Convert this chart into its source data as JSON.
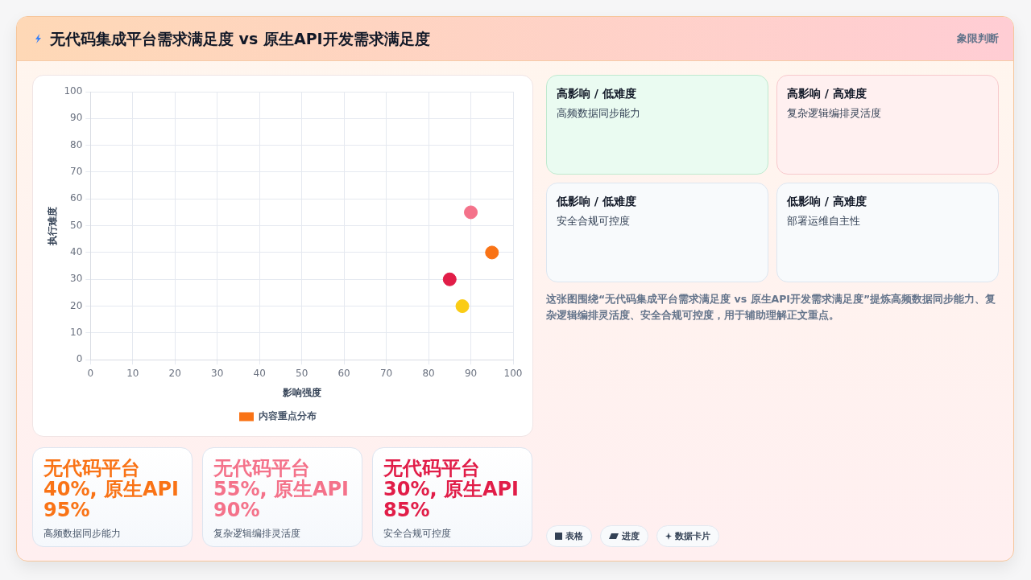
{
  "chart_data": [
    {
      "type": "scatter",
      "title": "无代码集成平台需求满足度 vs 原生API开发需求满足度",
      "xlabel": "影响强度",
      "ylabel": "执行难度",
      "x": [
        95,
        90,
        85,
        88
      ],
      "series": [
        {
          "name": "内容重点分布",
          "color": "#f97316",
          "colors": [
            "#f97316",
            "#f4728a",
            "#e11d48",
            "#facc15"
          ],
          "values": [
            40,
            55,
            30,
            20
          ]
        }
      ],
      "xlim": [
        0,
        100
      ],
      "xticks": [
        0,
        10,
        20,
        30,
        40,
        50,
        60,
        70,
        80,
        90,
        100
      ],
      "ylim": [
        0,
        100
      ],
      "yticks": [
        0,
        10,
        20,
        30,
        40,
        50,
        60,
        70,
        80,
        90,
        100
      ],
      "grid": true,
      "legend": "bottom",
      "marker": "circle"
    },
    {
      "type": "other",
      "title": "象限判断",
      "annotations": [
        "高影响 / 低难度",
        "高频数据同步能力",
        "高影响 / 高难度",
        "复杂逻辑编排灵活度",
        "低影响 / 低难度",
        "安全合规可控度",
        "低影响 / 高难度",
        "部署运维自主性",
        "这张图围绕“无代码集成平台需求满足度 vs 原生API开发需求满足度”提炼高频数据同步能力、复杂逻辑编排灵活度、安全合规可控度，用于辅助理解正文重点。"
      ]
    },
    {
      "type": "other",
      "annotations": [
        "无代码平台 40%, 原生API 95%",
        "高频数据同步能力",
        "无代码平台 55%, 原生API 90%",
        "复杂逻辑编排灵活度",
        "无代码平台 30%, 原生API 85%",
        "安全合规可控度"
      ],
      "colors": [
        "#f97316",
        "#f4728a",
        "#e11d48"
      ]
    },
    {
      "type": "other",
      "annotations": [
        "表格",
        "进度",
        "数据卡片"
      ]
    }
  ]
}
